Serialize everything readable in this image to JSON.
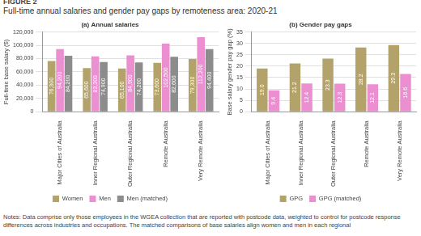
{
  "figure_label": "FIGURE 2",
  "title": "Full-time annual salaries and gender pay gaps by remoteness area: 2020-21",
  "notes": "Notes: Data comprise only those employees in the WGEA collection that are reported with postcode data, weighted to control for postcode response differences across industries and occupations. The matched comparisons of base salaries align women and men in each regional",
  "chart_data": [
    {
      "type": "bar",
      "title": "(a) Annual salaries",
      "y_label": "Full-time base salary ($)",
      "categories": [
        "Major Cities of Australia",
        "Inner Regional Australia",
        "Outer Regional Australia",
        "Remote Australia",
        "Very Remote Australia"
      ],
      "series": [
        {
          "name": "Women",
          "color": "#b3a36b",
          "values": [
            76300,
            65600,
            65100,
            73600,
            79300
          ],
          "value_labels": [
            "76,300",
            "65,600",
            "65,100",
            "73,600",
            "79,300"
          ]
        },
        {
          "name": "Men",
          "color": "#ec8fd0",
          "values": [
            94200,
            83300,
            84900,
            102500,
            112200
          ],
          "value_labels": [
            "94,200",
            "83,300",
            "84,900",
            "102,500",
            "112,200"
          ]
        },
        {
          "name": "Men (matched)",
          "color": "#8c8c8c",
          "values": [
            84200,
            74900,
            74200,
            82600,
            94400
          ],
          "value_labels": [
            "84,200",
            "74,900",
            "74,200",
            "82,600",
            "94,400"
          ]
        }
      ],
      "ylim": [
        0,
        120000
      ],
      "yticks": [
        0,
        {
          "value": 20000,
          "label": "20,000"
        },
        {
          "value": 40000,
          "label": "40,000"
        },
        {
          "value": 60000,
          "label": "60,000"
        },
        {
          "value": 80000,
          "label": "80,000"
        },
        {
          "value": 100000,
          "label": "100,000"
        },
        {
          "value": 120000,
          "label": "120,000"
        }
      ],
      "grid": true,
      "legend": "bottom",
      "data_labels": true
    },
    {
      "type": "bar",
      "title": "(b) Gender pay gaps",
      "y_label": "Base salary gender pay gap (%)",
      "categories": [
        "Major Cities of Australia",
        "Inner Regional Australia",
        "Outer Regional Australia",
        "Remote Australia",
        "Very Remote Australia"
      ],
      "series": [
        {
          "name": "GPG",
          "color": "#b3a36b",
          "values": [
            19.0,
            21.2,
            23.3,
            28.2,
            29.3
          ],
          "value_labels": [
            "19.0",
            "21.2",
            "23.3",
            "28.2",
            "29.3"
          ]
        },
        {
          "name": "GPG (matched)",
          "color": "#ec8fd0",
          "values": [
            9.4,
            12.4,
            12.3,
            12.1,
            16.6
          ]
        }
      ],
      "ylim": [
        0,
        35
      ],
      "yticks": [
        0,
        5,
        10,
        15,
        20,
        25,
        30,
        35
      ],
      "grid": true,
      "legend": "bottom",
      "data_labels": true
    }
  ]
}
